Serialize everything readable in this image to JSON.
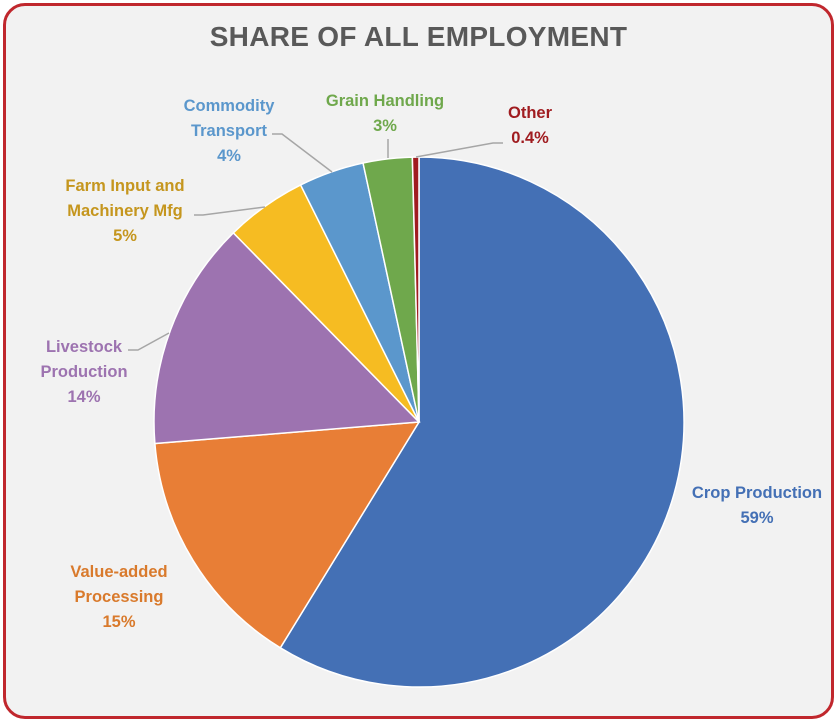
{
  "chart_data": {
    "type": "pie",
    "title": "SHARE OF ALL EMPLOYMENT",
    "slices": [
      {
        "name": "Crop Production",
        "lines": [
          "Crop Production"
        ],
        "value": 59,
        "pct_label": "59%",
        "color": "#4470b5"
      },
      {
        "name": "Value-added Processing",
        "lines": [
          "Value-added",
          "Processing"
        ],
        "value": 15,
        "pct_label": "15%",
        "color": "#e87e36"
      },
      {
        "name": "Livestock Production",
        "lines": [
          "Livestock",
          "Production"
        ],
        "value": 14,
        "pct_label": "14%",
        "color": "#9d73b0"
      },
      {
        "name": "Farm Input and Machinery Mfg",
        "lines": [
          "Farm Input and",
          "Machinery Mfg"
        ],
        "value": 5,
        "pct_label": "5%",
        "color": "#f6bc22"
      },
      {
        "name": "Commodity Transport",
        "lines": [
          "Commodity",
          "Transport"
        ],
        "value": 4,
        "pct_label": "4%",
        "color": "#5b97cc"
      },
      {
        "name": "Grain Handling",
        "lines": [
          "Grain Handling"
        ],
        "value": 3,
        "pct_label": "3%",
        "color": "#6fa84c"
      },
      {
        "name": "Other",
        "lines": [
          "Other"
        ],
        "value": 0.4,
        "pct_label": "0.4%",
        "color": "#a01c20"
      }
    ],
    "label_colors": [
      "#4470b5",
      "#d97a2c",
      "#9d73b0",
      "#c5961e",
      "#5b97cc",
      "#6fa84c",
      "#a01c20"
    ],
    "start_angle_deg": 0,
    "direction": "clockwise",
    "legend": "none"
  }
}
